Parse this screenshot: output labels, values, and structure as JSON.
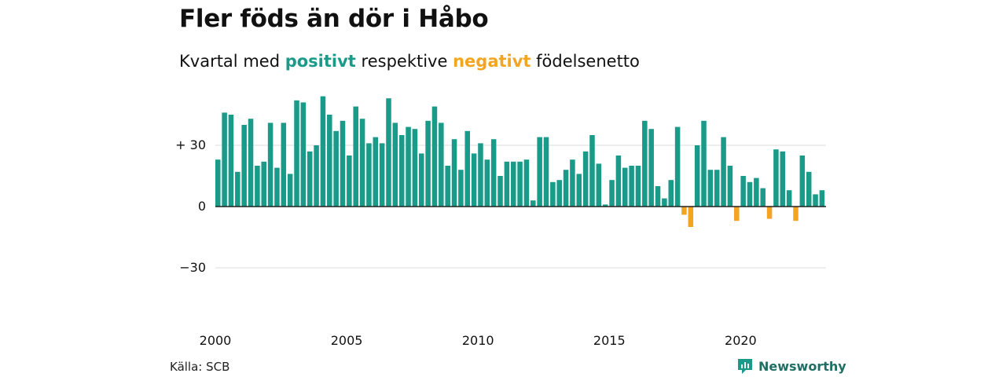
{
  "header": {
    "title": "Fler föds än dör i Håbo",
    "subtitle_pre": "Kvartal med",
    "subtitle_pos": "positivt",
    "subtitle_mid": "respektive",
    "subtitle_neg": "negativt",
    "subtitle_post": "födelsenetto"
  },
  "footer": {
    "source": "Källa: SCB",
    "brand": "Newsworthy"
  },
  "colors": {
    "positive": "#1a9a89",
    "negative": "#f3a521",
    "grid": "#dddddd",
    "zero_line": "#222222",
    "brand": "#1a9a89"
  },
  "chart_data": {
    "type": "bar",
    "x_start": "2000 Q1",
    "x_ticks": [
      "2000",
      "2005",
      "2010",
      "2015",
      "2020"
    ],
    "y_ticks": [
      {
        "value": 30,
        "label": "+ 30"
      },
      {
        "value": 0,
        "label": "0"
      },
      {
        "value": -30,
        "label": "−30"
      }
    ],
    "ylim": [
      -50,
      58
    ],
    "grid": true,
    "values": [
      23,
      46,
      45,
      17,
      40,
      43,
      20,
      22,
      41,
      19,
      41,
      16,
      52,
      51,
      27,
      30,
      54,
      45,
      37,
      42,
      25,
      49,
      43,
      31,
      34,
      31,
      53,
      41,
      35,
      39,
      38,
      26,
      42,
      49,
      41,
      20,
      33,
      18,
      37,
      26,
      31,
      23,
      33,
      15,
      22,
      22,
      22,
      23,
      3,
      34,
      34,
      12,
      13,
      18,
      23,
      16,
      27,
      35,
      21,
      1,
      13,
      25,
      19,
      20,
      20,
      42,
      38,
      10,
      4,
      13,
      39,
      -4,
      -10,
      30,
      42,
      18,
      18,
      34,
      20,
      -7,
      15,
      12,
      14,
      9,
      -6,
      28,
      27,
      8,
      -7,
      25,
      17,
      6,
      8
    ]
  }
}
